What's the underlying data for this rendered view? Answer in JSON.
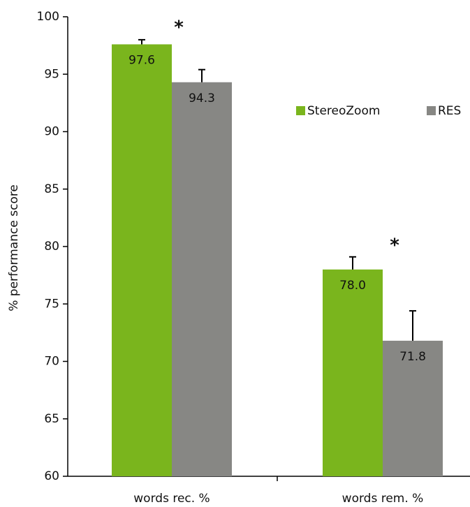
{
  "chart_data": {
    "type": "bar",
    "y_label": "% performance score",
    "categories": [
      "words rec. %",
      "words rem. %"
    ],
    "series": [
      {
        "name": "StereoZoom",
        "color": "#7ab51d",
        "values": [
          97.6,
          78.0
        ],
        "value_labels": [
          "97.6",
          "78.0"
        ],
        "errors": [
          0.4,
          1.1
        ]
      },
      {
        "name": "RES",
        "color": "#878784",
        "values": [
          94.3,
          71.8
        ],
        "value_labels": [
          "94.3",
          "71.8"
        ],
        "errors": [
          1.1,
          2.6
        ]
      }
    ],
    "annotations": [
      "*",
      "*"
    ],
    "ylim": [
      60,
      100
    ],
    "yticks": [
      60,
      65,
      70,
      75,
      80,
      85,
      90,
      95,
      100
    ],
    "legend": "upper right"
  }
}
